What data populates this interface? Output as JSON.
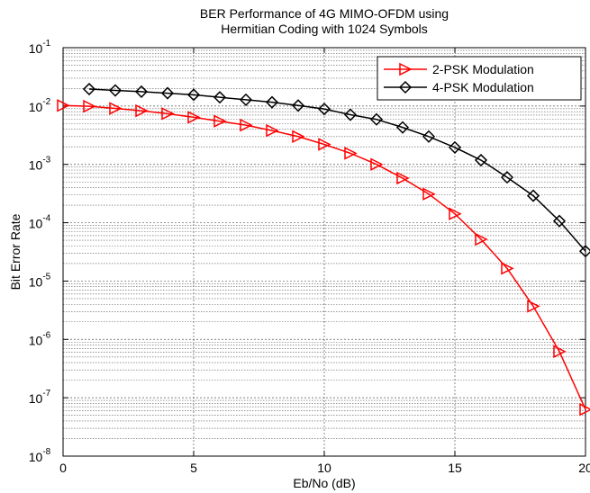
{
  "chart_data": {
    "type": "line",
    "title": "BER Performance of 4G MIMO-OFDM using Hermitian Coding with 1024 Symbols",
    "title_lines": [
      "BER Performance of 4G MIMO-OFDM using",
      "Hermitian Coding with 1024 Symbols"
    ],
    "xlabel": "Eb/No (dB)",
    "ylabel": "Bit Error Rate",
    "xlim": [
      0,
      20
    ],
    "ylim": [
      1e-08,
      0.1
    ],
    "y_scale": "log",
    "x_ticks": [
      0,
      5,
      10,
      15,
      20
    ],
    "y_ticks": [
      {
        "base": "10",
        "exp": "-8",
        "value": 1e-08
      },
      {
        "base": "10",
        "exp": "-7",
        "value": 1e-07
      },
      {
        "base": "10",
        "exp": "-6",
        "value": 1e-06
      },
      {
        "base": "10",
        "exp": "-5",
        "value": 1e-05
      },
      {
        "base": "10",
        "exp": "-4",
        "value": 0.0001
      },
      {
        "base": "10",
        "exp": "-3",
        "value": 0.001
      },
      {
        "base": "10",
        "exp": "-2",
        "value": 0.01
      },
      {
        "base": "10",
        "exp": "-1",
        "value": 0.1
      }
    ],
    "grid": true,
    "legend_position": "top-right",
    "series": [
      {
        "name": "2-PSK Modulation",
        "color": "#ff0000",
        "marker": "triangle-right",
        "x": [
          0,
          1,
          2,
          3,
          4,
          5,
          6,
          7,
          8,
          9,
          10,
          11,
          12,
          13,
          14,
          15,
          16,
          17,
          18,
          19,
          20
        ],
        "y": [
          0.0102,
          0.0099,
          0.0091,
          0.0083,
          0.0074,
          0.0064,
          0.0055,
          0.0047,
          0.0038,
          0.003,
          0.0022,
          0.00155,
          0.001,
          0.00058,
          0.00031,
          0.000142,
          5.2e-05,
          1.65e-05,
          3.7e-06,
          6.2e-07,
          6.3e-08
        ]
      },
      {
        "name": "4-PSK Modulation",
        "color": "#000000",
        "marker": "diamond",
        "x": [
          1,
          2,
          3,
          4,
          5,
          6,
          7,
          8,
          9,
          10,
          11,
          12,
          13,
          14,
          15,
          16,
          17,
          18,
          19,
          20
        ],
        "y": [
          0.0195,
          0.0185,
          0.0176,
          0.0166,
          0.0156,
          0.0141,
          0.0128,
          0.0116,
          0.0102,
          0.0089,
          0.0071,
          0.0059,
          0.0043,
          0.003,
          0.00195,
          0.00118,
          0.0006,
          0.00029,
          0.000107,
          3.25e-05
        ]
      }
    ]
  }
}
